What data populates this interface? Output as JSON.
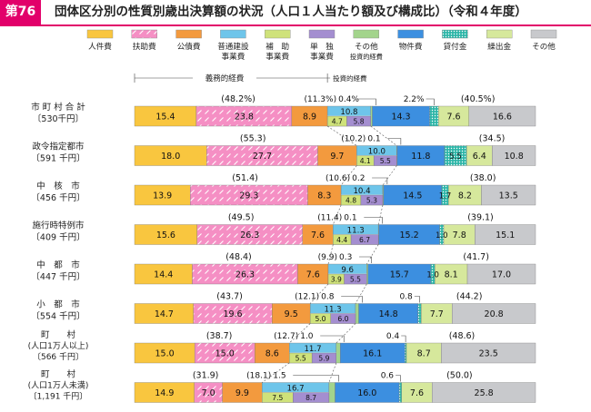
{
  "figure": {
    "badge": "第76図",
    "title": "団体区分別の性質別歳出決算額の状況（人口１人当たり額及び構成比）（令和４年度）"
  },
  "chart_data": {
    "type": "bar",
    "orientation": "horizontal",
    "stacked": true,
    "unit": "%",
    "legend": [
      {
        "key": "jinken",
        "lines": [
          "人件費"
        ],
        "color": "#f9c63f",
        "pattern": "solid"
      },
      {
        "key": "fujo",
        "lines": [
          "扶助費"
        ],
        "color": "#f58fc4",
        "pattern": "dash"
      },
      {
        "key": "kosai",
        "lines": [
          "公債費"
        ],
        "color": "#f39a3e",
        "pattern": "solid"
      },
      {
        "key": "futsu",
        "lines": [
          "普通建設",
          "事業費"
        ],
        "color": "#6ec5ea",
        "pattern": "solid"
      },
      {
        "key": "hojo",
        "lines": [
          "補　助",
          "事業費"
        ],
        "color": "#cfe27a",
        "pattern": "solid"
      },
      {
        "key": "tandoku",
        "lines": [
          "単　独",
          "事業費"
        ],
        "color": "#a48ed0",
        "pattern": "solid"
      },
      {
        "key": "sonota_toshi",
        "lines": [
          "その他",
          "投資的経費"
        ],
        "color": "#a3d48c",
        "pattern": "solid"
      },
      {
        "key": "bukken",
        "lines": [
          "物件費"
        ],
        "color": "#3c8fe0",
        "pattern": "solid"
      },
      {
        "key": "kashitsuke",
        "lines": [
          "貸付金"
        ],
        "color": "#2eb6a8",
        "pattern": "dots"
      },
      {
        "key": "kuridashi",
        "lines": [
          "繰出金"
        ],
        "color": "#d6e89c",
        "pattern": "solid"
      },
      {
        "key": "sonota",
        "lines": [
          "その他"
        ],
        "color": "#c8c9cc",
        "pattern": "solid"
      }
    ],
    "brackets": {
      "gimu": "義務的経費",
      "toshi": "投資的経費"
    },
    "rows": [
      {
        "name": [
          "市 町 村 合 計"
        ],
        "pop": "〔530千円〕",
        "jinken": 15.4,
        "fujo": 23.8,
        "kosai": 8.9,
        "futsu": 10.8,
        "hojo": 4.7,
        "tandoku": 5.8,
        "sonota_toshi": 0.4,
        "bukken": 14.3,
        "kashitsuke": 2.2,
        "kuridashi": 7.6,
        "sonota": 16.6,
        "gimu_total": "(48.2%)",
        "toshi_total": "(11.3%)",
        "sonota_toshi_label": "0.4%",
        "kashitsuke_label": "2.2%",
        "right_total": "(40.5%)"
      },
      {
        "name": [
          "政令指定都市"
        ],
        "pop": "〔591 千円〕",
        "jinken": 18.0,
        "fujo": 27.7,
        "kosai": 9.7,
        "futsu": 10.0,
        "hojo": 4.1,
        "tandoku": 5.5,
        "sonota_toshi": 0.1,
        "bukken": 11.8,
        "kashitsuke": 5.5,
        "kuridashi": 6.4,
        "sonota": 10.8,
        "gimu_total": "(55.3)",
        "toshi_total": "(10.2)",
        "sonota_toshi_label": "0.1",
        "kashitsuke_label": "",
        "right_total": "(34.5)"
      },
      {
        "name": [
          "中　核　市"
        ],
        "pop": "〔456 千円〕",
        "jinken": 13.9,
        "fujo": 29.3,
        "kosai": 8.3,
        "futsu": 10.4,
        "hojo": 4.8,
        "tandoku": 5.3,
        "sonota_toshi": 0.2,
        "bukken": 14.5,
        "kashitsuke": 1.7,
        "kuridashi": 8.2,
        "sonota": 13.5,
        "gimu_total": "(51.4)",
        "toshi_total": "(10.6)",
        "sonota_toshi_label": "0.2",
        "kashitsuke_label": "",
        "right_total": "(38.0)"
      },
      {
        "name": [
          "施行時特例市"
        ],
        "pop": "〔409 千円〕",
        "jinken": 15.6,
        "fujo": 26.3,
        "kosai": 7.6,
        "futsu": 11.3,
        "hojo": 4.4,
        "tandoku": 6.7,
        "sonota_toshi": 0.1,
        "bukken": 15.2,
        "kashitsuke": 1.0,
        "kuridashi": 7.8,
        "sonota": 15.1,
        "gimu_total": "(49.5)",
        "toshi_total": "(11.4)",
        "sonota_toshi_label": "0.1",
        "kashitsuke_label": "",
        "right_total": "(39.1)"
      },
      {
        "name": [
          "中　都　市"
        ],
        "pop": "〔447 千円〕",
        "jinken": 14.4,
        "fujo": 26.3,
        "kosai": 7.6,
        "futsu": 9.6,
        "hojo": 3.9,
        "tandoku": 5.5,
        "sonota_toshi": 0.3,
        "bukken": 15.7,
        "kashitsuke": 1.0,
        "kuridashi": 8.1,
        "sonota": 17.0,
        "gimu_total": "(48.4)",
        "toshi_total": "(9.9)",
        "sonota_toshi_label": "0.3",
        "kashitsuke_label": "",
        "right_total": "(41.7)"
      },
      {
        "name": [
          "小　都　市"
        ],
        "pop": "〔554 千円〕",
        "jinken": 14.7,
        "fujo": 19.6,
        "kosai": 9.5,
        "futsu": 11.3,
        "hojo": 5.0,
        "tandoku": 6.0,
        "sonota_toshi": 0.8,
        "bukken": 14.8,
        "kashitsuke": 0.8,
        "kuridashi": 7.7,
        "sonota": 20.8,
        "gimu_total": "(43.7)",
        "toshi_total": "(12.1)",
        "sonota_toshi_label": "0.8",
        "kashitsuke_label": "0.8",
        "right_total": "(44.2)"
      },
      {
        "name": [
          "町　　村",
          "(人口1万人以上)"
        ],
        "pop": "〔566 千円〕",
        "jinken": 15.0,
        "fujo": 15.0,
        "kosai": 8.6,
        "futsu": 11.7,
        "hojo": 5.5,
        "tandoku": 5.9,
        "sonota_toshi": 1.0,
        "bukken": 16.1,
        "kashitsuke": 0.4,
        "kuridashi": 8.7,
        "sonota": 23.5,
        "gimu_total": "(38.7)",
        "toshi_total": "(12.7)",
        "sonota_toshi_label": "1.0",
        "kashitsuke_label": "0.4",
        "right_total": "(48.6)"
      },
      {
        "name": [
          "町　　村",
          "(人口1万人未満)"
        ],
        "pop": "〔1,191 千円〕",
        "jinken": 14.9,
        "fujo": 7.0,
        "kosai": 9.9,
        "futsu": 16.7,
        "hojo": 7.5,
        "tandoku": 8.7,
        "sonota_toshi": 1.5,
        "bukken": 16.0,
        "kashitsuke": 0.6,
        "kuridashi": 7.6,
        "sonota": 25.8,
        "gimu_total": "(31.9)",
        "toshi_total": "(18.1)",
        "sonota_toshi_label": "1.5",
        "kashitsuke_label": "0.6",
        "right_total": "(50.0)"
      }
    ]
  }
}
